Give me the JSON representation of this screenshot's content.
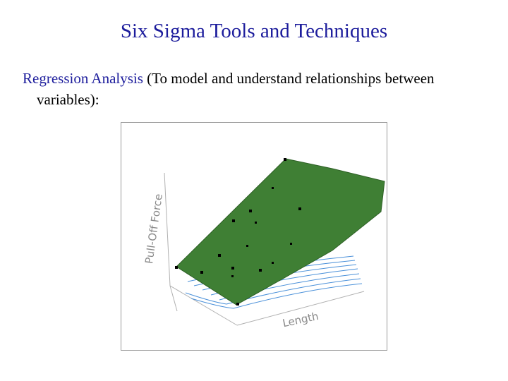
{
  "header": {
    "title": "Six Sigma Tools and Techniques"
  },
  "body": {
    "term": "Regression Analysis",
    "description": "(To model and understand relationships between variables):"
  },
  "figure": {
    "z_label": "Pull-Off Force",
    "x_label": "Length"
  }
}
